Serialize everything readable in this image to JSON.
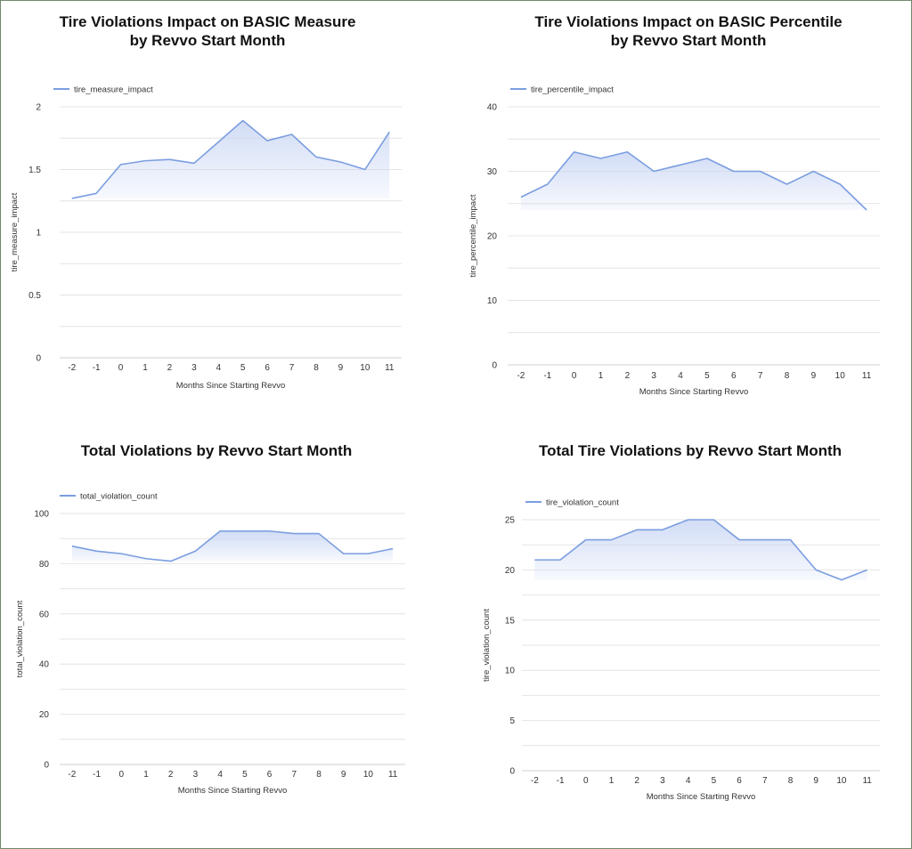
{
  "colors": {
    "series": "#7b9ee0",
    "area_top": "#c9d6f4",
    "grid": "#e4e4e4",
    "text": "#333333",
    "title": "#111111",
    "frame": "#6f8a6a"
  },
  "chart_data": [
    {
      "type": "area",
      "title_lines": [
        "Tire Violations Impact on BASIC Measure",
        "by Revvo Start Month"
      ],
      "xlabel": "Months Since Starting Revvo",
      "ylabel": "tire_measure_impact",
      "legend": {
        "position": "top-left",
        "entries": [
          "tire_measure_impact"
        ]
      },
      "x": [
        "-2",
        "-1",
        "0",
        "1",
        "2",
        "3",
        "4",
        "5",
        "6",
        "7",
        "8",
        "9",
        "10",
        "11"
      ],
      "series": [
        {
          "name": "tire_measure_impact",
          "values": [
            1.27,
            1.31,
            1.54,
            1.57,
            1.58,
            1.55,
            1.72,
            1.89,
            1.73,
            1.78,
            1.6,
            1.56,
            1.5,
            1.8
          ]
        }
      ],
      "ylim": [
        0,
        2
      ],
      "yticks": [
        0,
        0.5,
        1,
        1.5,
        2
      ],
      "ytick_labels": [
        "0",
        "0.5",
        "1",
        "1.5",
        "2"
      ],
      "grid": true
    },
    {
      "type": "area",
      "title_lines": [
        "Tire Violations Impact on BASIC Percentile",
        "by Revvo Start Month"
      ],
      "xlabel": "Months Since Starting Revvo",
      "ylabel": "tire_percentile_impact",
      "legend": {
        "position": "top-left",
        "entries": [
          "tire_percentile_impact"
        ]
      },
      "x": [
        "-2",
        "-1",
        "0",
        "1",
        "2",
        "3",
        "4",
        "5",
        "6",
        "7",
        "8",
        "9",
        "10",
        "11"
      ],
      "series": [
        {
          "name": "tire_percentile_impact",
          "values": [
            26,
            28,
            33,
            32,
            33,
            30,
            31,
            32,
            30,
            30,
            28,
            30,
            28,
            24
          ]
        }
      ],
      "ylim": [
        0,
        40
      ],
      "yticks": [
        0,
        10,
        20,
        30,
        40
      ],
      "ytick_labels": [
        "0",
        "10",
        "20",
        "30",
        "40"
      ],
      "grid": true
    },
    {
      "type": "area",
      "title_lines": [
        "Total Violations by Revvo Start Month"
      ],
      "xlabel": "Months Since Starting Revvo",
      "ylabel": "total_violation_count",
      "legend": {
        "position": "top-left",
        "entries": [
          "total_violation_count"
        ]
      },
      "x": [
        "-2",
        "-1",
        "0",
        "1",
        "2",
        "3",
        "4",
        "5",
        "6",
        "7",
        "8",
        "9",
        "10",
        "11"
      ],
      "series": [
        {
          "name": "total_violation_count",
          "values": [
            87,
            85,
            84,
            82,
            81,
            85,
            93,
            93,
            93,
            92,
            92,
            84,
            84,
            86
          ]
        }
      ],
      "ylim": [
        0,
        100
      ],
      "yticks": [
        0,
        20,
        40,
        60,
        80,
        100
      ],
      "ytick_labels": [
        "0",
        "20",
        "40",
        "60",
        "80",
        "100"
      ],
      "grid": true
    },
    {
      "type": "area",
      "title_lines": [
        "Total Tire Violations by Revvo Start Month"
      ],
      "xlabel": "Months Since Starting Revvo",
      "ylabel": "tire_violation_count",
      "legend": {
        "position": "top-left",
        "entries": [
          "tire_violation_count"
        ]
      },
      "x": [
        "-2",
        "-1",
        "0",
        "1",
        "2",
        "3",
        "4",
        "5",
        "6",
        "7",
        "8",
        "9",
        "10",
        "11"
      ],
      "series": [
        {
          "name": "tire_violation_count",
          "values": [
            21,
            21,
            23,
            23,
            24,
            24,
            25,
            25,
            23,
            23,
            23,
            20,
            19,
            20
          ]
        }
      ],
      "ylim": [
        0,
        25
      ],
      "yticks": [
        0,
        5,
        10,
        15,
        20,
        25
      ],
      "ytick_labels": [
        "0",
        "5",
        "10",
        "15",
        "20",
        "25"
      ],
      "grid": true
    }
  ]
}
